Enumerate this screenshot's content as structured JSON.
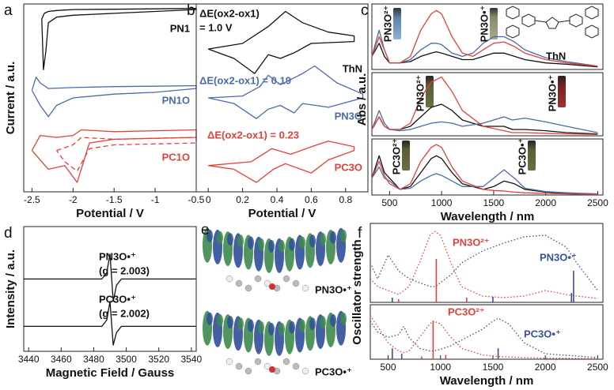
{
  "chart_data": [
    {
      "type": "line",
      "panel": "a",
      "xlabel": "Potential / V",
      "ylabel": "Current / a.u.",
      "xlim": [
        -2.6,
        -0.5
      ],
      "ylim": [
        0,
        10
      ],
      "xticks": [
        -2.5,
        -2,
        -1.5,
        -1,
        -0.5
      ],
      "series": [
        {
          "name": "PN1",
          "color": "#111111",
          "linestyle": "solid",
          "x": [
            -2.38,
            -2.35,
            -2.3,
            -2.2,
            -2.0,
            -1.5,
            -1,
            -0.5,
            -0.5,
            -1,
            -1.5,
            -2,
            -2.2,
            -2.3,
            -2.33,
            -2.36,
            -2.38
          ],
          "values": [
            9.2,
            9.5,
            9.6,
            9.65,
            9.7,
            9.72,
            9.74,
            9.76,
            9.7,
            9.6,
            9.5,
            9.4,
            9.3,
            9.0,
            7.5,
            6.5,
            9.2
          ]
        },
        {
          "name": "PN1O",
          "color": "#4a6aa8",
          "linestyle": "solid",
          "x": [
            -2.5,
            -2.45,
            -2.4,
            -2.3,
            -2,
            -1.5,
            -1,
            -0.5,
            -0.5,
            -1,
            -1.5,
            -2,
            -2.2,
            -2.3,
            -2.4,
            -2.5
          ],
          "values": [
            5.4,
            6.1,
            5.8,
            5.5,
            5.55,
            5.6,
            5.62,
            5.65,
            5.5,
            5.3,
            5.2,
            5.0,
            4.6,
            4.0,
            4.6,
            5.4
          ]
        },
        {
          "name": "PC1O",
          "color": "#e0413a",
          "linestyle": "solid",
          "x": [
            -2.5,
            -2.4,
            -2.2,
            -2.0,
            -1.9,
            -1.5,
            -1,
            -0.5,
            -0.5,
            -1,
            -1.5,
            -1.8,
            -1.95,
            -2.1,
            -2.3,
            -2.5
          ],
          "values": [
            2.2,
            3.0,
            2.9,
            3.0,
            3.3,
            3.2,
            3.25,
            3.3,
            2.9,
            2.85,
            2.8,
            2.6,
            0.5,
            1.4,
            1.2,
            2.2
          ]
        },
        {
          "color": "#e0413a",
          "linestyle": "dashed",
          "x": [
            -2.2,
            -2.0,
            -1.9,
            -1.5,
            -1,
            -0.5,
            -0.5,
            -1,
            -1.5,
            -1.8,
            -1.95,
            -2.1,
            -2.2
          ],
          "values": [
            2.2,
            2.5,
            2.9,
            2.8,
            2.85,
            2.9,
            2.6,
            2.55,
            2.5,
            2.3,
            1.1,
            1.6,
            2.2
          ]
        }
      ]
    },
    {
      "type": "line",
      "panel": "b",
      "xlabel": "Potential / V",
      "xlim": [
        -0.07,
        0.93
      ],
      "ylim": [
        0,
        10
      ],
      "xticks": [
        0,
        0.2,
        0.4,
        0.6,
        0.8
      ],
      "annotations": [
        "ΔE(ox2-ox1)",
        "= 1.0 V",
        "ΔE(ox2-ox1) = 0.19",
        "ΔE(ox2-ox1) = 0.23"
      ],
      "series": [
        {
          "name": "ThN",
          "color": "#111111",
          "linestyle": "solid",
          "x": [
            0,
            0.2,
            0.35,
            0.45,
            0.55,
            0.7,
            0.85,
            0.85,
            0.6,
            0.5,
            0.42,
            0.35,
            0.27,
            0.15,
            0
          ],
          "values": [
            7.6,
            7.9,
            8.8,
            9.6,
            9.0,
            8.5,
            8.3,
            8.0,
            7.9,
            7.4,
            7.1,
            7.3,
            6.3,
            7.1,
            7.6
          ]
        },
        {
          "name": "PN3O",
          "color": "#4a6aa8",
          "linestyle": "solid",
          "x": [
            0,
            0.2,
            0.3,
            0.35,
            0.42,
            0.55,
            0.62,
            0.75,
            0.9,
            0.9,
            0.7,
            0.55,
            0.5,
            0.42,
            0.35,
            0.28,
            0.15,
            0
          ],
          "values": [
            5.0,
            5.1,
            5.6,
            6.2,
            5.7,
            6.3,
            6.7,
            5.8,
            5.2,
            5.0,
            4.5,
            4.7,
            4.2,
            4.6,
            4.4,
            3.9,
            4.7,
            5.0
          ]
        },
        {
          "name": "PC3O",
          "color": "#e0413a",
          "linestyle": "solid",
          "x": [
            0,
            0.25,
            0.37,
            0.48,
            0.6,
            0.7,
            0.85,
            0.85,
            0.7,
            0.6,
            0.45,
            0.38,
            0.28,
            0.15,
            0
          ],
          "values": [
            1.4,
            1.6,
            2.3,
            2.0,
            2.4,
            2.7,
            2.4,
            2.2,
            1.7,
            1.0,
            1.5,
            1.2,
            0.5,
            1.2,
            1.4
          ]
        }
      ]
    },
    {
      "type": "line",
      "panel": "c",
      "xlim": [
        330,
        2550
      ],
      "ylim": [
        0,
        10
      ],
      "annotations": [
        "PN3O²⁺",
        "PN3O•⁺",
        "ThN"
      ],
      "x": [
        330,
        400,
        450,
        500,
        600,
        700,
        800,
        900,
        950,
        1000,
        1100,
        1200,
        1300,
        1400,
        1500,
        1600,
        1700,
        1800,
        2000,
        2200,
        2500
      ],
      "series": [
        {
          "color": "#111111",
          "linestyle": "solid",
          "values": [
            2,
            4,
            2,
            1,
            1,
            1.2,
            2,
            2.5,
            2.7,
            2.5,
            2,
            1.5,
            1.5,
            2,
            2.5,
            2.5,
            2,
            1.5,
            1,
            0.8,
            0.4
          ]
        },
        {
          "color": "#4a6aa8",
          "linestyle": "solid",
          "values": [
            2,
            6,
            3,
            1,
            1,
            1.5,
            3,
            4,
            4,
            3.8,
            2.5,
            2,
            2.5,
            4,
            5,
            5,
            4.2,
            3,
            1.8,
            1.2,
            0.5
          ]
        },
        {
          "color": "#e0413a",
          "linestyle": "solid",
          "values": [
            2,
            5,
            3,
            1,
            1,
            2,
            6,
            8.5,
            9,
            8.5,
            5,
            2.5,
            2,
            3,
            4,
            4.2,
            3.5,
            2.5,
            1.5,
            1,
            0.5
          ]
        }
      ]
    },
    {
      "type": "line",
      "ylabel": "Abs / a.u.",
      "xlim": [
        330,
        2550
      ],
      "ylim": [
        0,
        10
      ],
      "annotations": [
        "PN3O²⁺",
        "PN3O•⁺"
      ],
      "x": [
        330,
        400,
        450,
        500,
        600,
        700,
        800,
        900,
        1000,
        1100,
        1200,
        1400,
        1600,
        1680,
        1800,
        2000,
        2200,
        2500
      ],
      "series": [
        {
          "color": "#111111",
          "linestyle": "solid",
          "values": [
            1,
            3,
            1.5,
            1,
            1,
            1.5,
            3,
            4.5,
            5,
            4,
            2.5,
            1.5,
            1.5,
            1,
            1,
            0.8,
            0.5,
            0.3
          ]
        },
        {
          "color": "#4a6aa8",
          "linestyle": "solid",
          "values": [
            1,
            4,
            2,
            1,
            0.8,
            1,
            1.5,
            2,
            2.2,
            2,
            1.5,
            2,
            3,
            2.5,
            2.8,
            2.2,
            1.5,
            0.5
          ]
        },
        {
          "color": "#e0413a",
          "linestyle": "solid",
          "values": [
            1,
            3,
            1.5,
            1,
            1,
            2,
            6,
            8.5,
            9.3,
            7,
            4,
            1.5,
            0.8,
            0.5,
            0.5,
            0.4,
            0.3,
            0.2
          ]
        }
      ]
    },
    {
      "type": "line",
      "xlabel": "Wavelength / nm",
      "xlim": [
        330,
        2550
      ],
      "ylim": [
        0,
        10
      ],
      "xticks": [
        500,
        1000,
        1500,
        2000,
        2500
      ],
      "annotations": [
        "PC3O²⁺",
        "PC3O•⁺"
      ],
      "x": [
        330,
        400,
        450,
        500,
        600,
        700,
        800,
        900,
        950,
        1000,
        1100,
        1200,
        1400,
        1500,
        1600,
        1700,
        1800,
        2000,
        2200,
        2500
      ],
      "series": [
        {
          "color": "#111111",
          "linestyle": "solid",
          "values": [
            3,
            7,
            4,
            3,
            1,
            1.5,
            4,
            6.5,
            7,
            6.5,
            4,
            2,
            1,
            1.5,
            2.5,
            2,
            1,
            0.5,
            0.3,
            0.2
          ]
        },
        {
          "color": "#4a6aa8",
          "linestyle": "solid",
          "values": [
            3,
            5,
            3,
            2.5,
            1,
            1.2,
            2.5,
            3.5,
            3.8,
            3.5,
            2.5,
            1.5,
            1.5,
            3,
            4.5,
            3,
            1.2,
            0.6,
            0.4,
            0.2
          ]
        },
        {
          "color": "#e0413a",
          "linestyle": "solid",
          "values": [
            3,
            6,
            3.5,
            2,
            1,
            2,
            6,
            8.5,
            9,
            8.5,
            5,
            2.5,
            1,
            0.8,
            0.7,
            0.5,
            0.4,
            0.3,
            0.2,
            0.1
          ]
        }
      ]
    },
    {
      "type": "line",
      "panel": "d",
      "xlabel": "Magnetic Field / Gauss",
      "ylabel": "Intensity / a.u.",
      "xlim": [
        3437,
        3543
      ],
      "ylim": [
        0,
        10
      ],
      "xticks": [
        3440,
        3460,
        3480,
        3500,
        3520,
        3540
      ],
      "annotations": [
        "PN3O•⁺",
        "(g = 2.003)",
        "PC3O•⁺",
        "(g = 2.002)"
      ],
      "x": [
        3437,
        3485,
        3488,
        3490,
        3492,
        3494,
        3497,
        3543
      ],
      "series": [
        {
          "color": "#111111",
          "linestyle": "solid",
          "values": [
            5.8,
            5.8,
            6.3,
            7.8,
            4.0,
            5.3,
            5.8,
            5.8
          ]
        },
        {
          "color": "#111111",
          "linestyle": "solid",
          "values": [
            2.0,
            2.0,
            2.5,
            4.0,
            0.5,
            1.5,
            2.0,
            2.0
          ]
        }
      ]
    },
    {
      "type": "line",
      "panel": "f",
      "ylabel": "Oscillator strength",
      "xlim": [
        330,
        2550
      ],
      "ylim": [
        0,
        10
      ],
      "x": [
        330,
        400,
        500,
        600,
        700,
        800,
        900,
        950,
        1000,
        1100,
        1200,
        1400,
        1600,
        1800,
        2000,
        2200,
        2300,
        2500
      ],
      "series": [
        {
          "name": "PN3O²⁺",
          "color": "#e0413a",
          "linestyle": "dotted",
          "values": [
            3,
            2,
            1.5,
            1,
            2,
            5,
            8.5,
            9,
            8.5,
            5,
            2,
            0.8,
            0.6,
            0.8,
            1.5,
            1,
            0.8,
            0.5
          ]
        },
        {
          "name": "PN3O•⁺",
          "color": "#3a4f96",
          "linestyle": "dotted",
          "values": [
            5,
            3,
            6,
            4,
            3,
            2.5,
            2,
            2,
            2.5,
            3.5,
            5,
            6.5,
            7.5,
            8.3,
            8.5,
            7,
            5,
            1.5
          ]
        },
        {
          "color": "#e0413a",
          "linestyle": "stick",
          "x": [
            960,
            1250,
            600
          ],
          "values": [
            5.5,
            0.6,
            0.4
          ]
        },
        {
          "color": "#3a4f96",
          "linestyle": "stick",
          "x": [
            2270,
            540,
            1500,
            2250
          ],
          "values": [
            4,
            0.6,
            0.7,
            1.2
          ]
        }
      ]
    },
    {
      "type": "line",
      "xlabel": "Wavelength / nm",
      "xlim": [
        330,
        2550
      ],
      "ylim": [
        0,
        10
      ],
      "xticks": [
        500,
        1000,
        1500,
        2000,
        2500
      ],
      "x": [
        330,
        400,
        500,
        600,
        650,
        700,
        800,
        900,
        930,
        1000,
        1100,
        1200,
        1400,
        1500,
        1550,
        1650,
        1800,
        2000,
        2500
      ],
      "series": [
        {
          "name": "PC3O²⁺",
          "color": "#e0413a",
          "linestyle": "dotted",
          "values": [
            8,
            6,
            3,
            1.5,
            1.2,
            1.5,
            4,
            6.5,
            7,
            6.5,
            4,
            2,
            0.8,
            0.6,
            0.5,
            0.4,
            0.3,
            0.2,
            0.1
          ]
        },
        {
          "name": "PC3O•⁺",
          "color": "#3a4f96",
          "linestyle": "dotted",
          "values": [
            7,
            5,
            4,
            4.5,
            6,
            4,
            2,
            1.5,
            1.5,
            1.8,
            2.5,
            3.5,
            5.5,
            7,
            7.5,
            6.5,
            3,
            1,
            0.3
          ]
        },
        {
          "color": "#e0413a",
          "linestyle": "stick",
          "x": [
            930,
            1050,
            820
          ],
          "values": [
            7,
            0.8,
            0.5
          ]
        },
        {
          "color": "#3a4f96",
          "linestyle": "stick",
          "x": [
            1550,
            540,
            630
          ],
          "values": [
            2,
            2,
            1
          ]
        }
      ]
    }
  ],
  "panel_e": {
    "panel": "e",
    "labels": [
      "PN3O•⁺",
      "PC3O•⁺"
    ]
  }
}
